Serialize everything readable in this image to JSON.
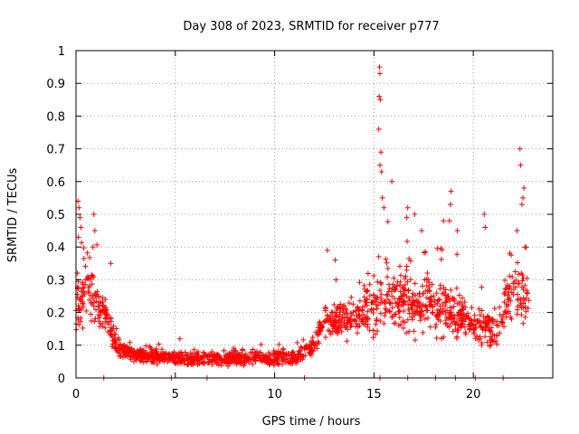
{
  "chart_data": {
    "type": "scatter",
    "title": "Day 308 of 2023, SRMTID for receiver p777",
    "xlabel": "GPS time / hours",
    "ylabel": "SRMTID / TECUs",
    "xlim": [
      0,
      24
    ],
    "ylim": [
      0,
      1
    ],
    "xticks": [
      0,
      5,
      10,
      15,
      20
    ],
    "xtick_labels": [
      "0",
      "5",
      "10",
      "15",
      "20"
    ],
    "yticks": [
      0,
      0.1,
      0.2,
      0.3,
      0.4,
      0.5,
      0.6,
      0.7,
      0.8,
      0.9,
      1
    ],
    "ytick_labels": [
      "0",
      "0.1",
      "0.2",
      "0.3",
      "0.4",
      "0.5",
      "0.6",
      "0.7",
      "0.8",
      "0.9",
      "1"
    ],
    "grid": true,
    "marker": "+",
    "color": "#ff0000",
    "series": [
      {
        "name": "SRMTID",
        "profile": [
          {
            "t": 0.0,
            "base": 0.22,
            "spread": 0.12
          },
          {
            "t": 0.5,
            "base": 0.28,
            "spread": 0.15
          },
          {
            "t": 1.0,
            "base": 0.22,
            "spread": 0.12
          },
          {
            "t": 1.5,
            "base": 0.2,
            "spread": 0.08
          },
          {
            "t": 2.0,
            "base": 0.1,
            "spread": 0.04
          },
          {
            "t": 3.0,
            "base": 0.07,
            "spread": 0.03
          },
          {
            "t": 5.0,
            "base": 0.06,
            "spread": 0.03
          },
          {
            "t": 8.0,
            "base": 0.06,
            "spread": 0.03
          },
          {
            "t": 11.0,
            "base": 0.06,
            "spread": 0.03
          },
          {
            "t": 12.0,
            "base": 0.1,
            "spread": 0.05
          },
          {
            "t": 12.5,
            "base": 0.18,
            "spread": 0.07
          },
          {
            "t": 14.0,
            "base": 0.18,
            "spread": 0.08
          },
          {
            "t": 15.0,
            "base": 0.22,
            "spread": 0.12
          },
          {
            "t": 16.0,
            "base": 0.25,
            "spread": 0.14
          },
          {
            "t": 17.0,
            "base": 0.22,
            "spread": 0.12
          },
          {
            "t": 18.0,
            "base": 0.22,
            "spread": 0.12
          },
          {
            "t": 19.0,
            "base": 0.2,
            "spread": 0.1
          },
          {
            "t": 20.0,
            "base": 0.17,
            "spread": 0.07
          },
          {
            "t": 21.0,
            "base": 0.14,
            "spread": 0.07
          },
          {
            "t": 22.0,
            "base": 0.25,
            "spread": 0.12
          },
          {
            "t": 22.8,
            "base": 0.25,
            "spread": 0.12
          }
        ],
        "x_start": 0.0,
        "x_end": 22.8,
        "count": 1600,
        "peaks": [
          {
            "x": 0.1,
            "y": 0.54
          },
          {
            "x": 0.15,
            "y": 0.52
          },
          {
            "x": 0.2,
            "y": 0.49
          },
          {
            "x": 0.25,
            "y": 0.46
          },
          {
            "x": 0.12,
            "y": 0.43
          },
          {
            "x": 0.9,
            "y": 0.5
          },
          {
            "x": 0.95,
            "y": 0.45
          },
          {
            "x": 0.85,
            "y": 0.4
          },
          {
            "x": 1.75,
            "y": 0.35
          },
          {
            "x": 12.65,
            "y": 0.39
          },
          {
            "x": 13.05,
            "y": 0.36
          },
          {
            "x": 15.28,
            "y": 0.95
          },
          {
            "x": 15.3,
            "y": 0.93
          },
          {
            "x": 15.26,
            "y": 0.86
          },
          {
            "x": 15.32,
            "y": 0.85
          },
          {
            "x": 15.24,
            "y": 0.76
          },
          {
            "x": 15.35,
            "y": 0.69
          },
          {
            "x": 15.3,
            "y": 0.65
          },
          {
            "x": 15.38,
            "y": 0.63
          },
          {
            "x": 15.9,
            "y": 0.6
          },
          {
            "x": 15.42,
            "y": 0.55
          },
          {
            "x": 15.5,
            "y": 0.52
          },
          {
            "x": 16.7,
            "y": 0.52
          },
          {
            "x": 16.65,
            "y": 0.49
          },
          {
            "x": 17.05,
            "y": 0.5
          },
          {
            "x": 17.4,
            "y": 0.45
          },
          {
            "x": 18.88,
            "y": 0.57
          },
          {
            "x": 18.85,
            "y": 0.53
          },
          {
            "x": 18.8,
            "y": 0.48
          },
          {
            "x": 18.5,
            "y": 0.48
          },
          {
            "x": 19.2,
            "y": 0.45
          },
          {
            "x": 20.55,
            "y": 0.5
          },
          {
            "x": 20.6,
            "y": 0.46
          },
          {
            "x": 22.2,
            "y": 0.45
          },
          {
            "x": 22.35,
            "y": 0.7
          },
          {
            "x": 22.38,
            "y": 0.65
          },
          {
            "x": 22.55,
            "y": 0.58
          },
          {
            "x": 22.5,
            "y": 0.55
          },
          {
            "x": 22.45,
            "y": 0.53
          },
          {
            "x": 22.6,
            "y": 0.4
          }
        ],
        "baseline_marks": [
          1.4,
          4.8,
          6.6,
          11.5,
          15.3,
          16.7,
          18.1,
          19.1,
          20.1,
          21.5
        ]
      }
    ]
  }
}
